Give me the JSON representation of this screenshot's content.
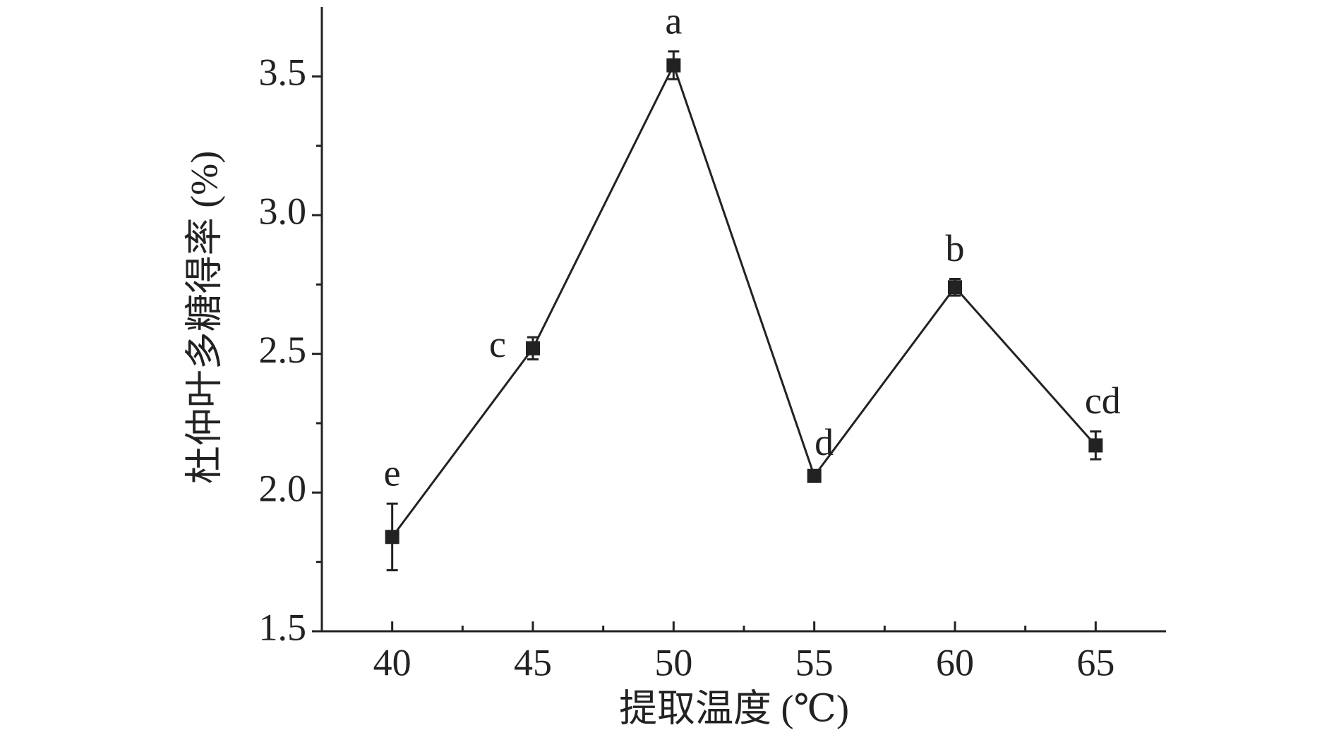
{
  "chart_data": {
    "type": "line",
    "x_label": "提取温度 (℃)",
    "y_label": "杜仲叶多糖得率 (%)",
    "x": [
      40,
      45,
      50,
      55,
      60,
      65
    ],
    "series": [
      {
        "name": "得率",
        "color": "#222222",
        "values": [
          1.84,
          2.52,
          3.54,
          2.06,
          2.74,
          2.17
        ],
        "errors": [
          0.12,
          0.04,
          0.05,
          0.01,
          0.03,
          0.05
        ],
        "significance_labels": [
          "e",
          "c",
          "a",
          "d",
          "b",
          "cd"
        ]
      }
    ],
    "xlim": [
      37.5,
      67.5
    ],
    "xticks": [
      40,
      45,
      50,
      55,
      60,
      65
    ],
    "minor_xticks": [
      42.5,
      47.5,
      52.5,
      57.5,
      62.5
    ],
    "ylim": [
      1.5,
      3.75
    ],
    "yticks": [
      {
        "value": 1.5,
        "label": "1.5"
      },
      {
        "value": 2,
        "label": "2.0"
      },
      {
        "value": 2.5,
        "label": "2.5"
      },
      {
        "value": 3,
        "label": "3.0"
      },
      {
        "value": 3.5,
        "label": "3.5"
      }
    ],
    "minor_yticks": [
      1.75,
      2.25,
      2.75,
      3.25
    ]
  }
}
